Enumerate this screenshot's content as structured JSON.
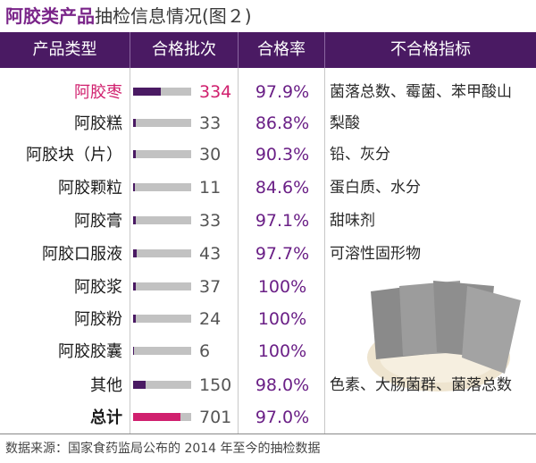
{
  "title": {
    "part1": "阿胶类产品",
    "part2": "抽检信息情况",
    "part3": "(图２)"
  },
  "header": {
    "product_type": "产品类型",
    "qualified_batches": "合格批次",
    "pass_rate": "合格率",
    "fail_indicators": "不合格指标"
  },
  "rows": [
    {
      "type": "阿胶枣",
      "count": "334",
      "rate": "97.9%",
      "fail": "菌落总数、霉菌、苯甲酸山",
      "bar_fraction": 0.48
    },
    {
      "type": "阿胶糕",
      "count": "33",
      "rate": "86.8%",
      "fail": "梨酸",
      "bar_fraction": 0.05
    },
    {
      "type": "阿胶块（片）",
      "count": "30",
      "rate": "90.3%",
      "fail": "铅、灰分",
      "bar_fraction": 0.05
    },
    {
      "type": "阿胶颗粒",
      "count": "11",
      "rate": "84.6%",
      "fail": "蛋白质、水分",
      "bar_fraction": 0.03
    },
    {
      "type": "阿胶膏",
      "count": "33",
      "rate": "97.1%",
      "fail": "甜味剂",
      "bar_fraction": 0.05
    },
    {
      "type": "阿胶口服液",
      "count": "43",
      "rate": "97.7%",
      "fail": "可溶性固形物",
      "bar_fraction": 0.06
    },
    {
      "type": "阿胶浆",
      "count": "37",
      "rate": "100%",
      "fail": "",
      "bar_fraction": 0.05
    },
    {
      "type": "阿胶粉",
      "count": "24",
      "rate": "100%",
      "fail": "",
      "bar_fraction": 0.04
    },
    {
      "type": "阿胶胶囊",
      "count": "6",
      "rate": "100%",
      "fail": "",
      "bar_fraction": 0.02
    },
    {
      "type": "其他",
      "count": "150",
      "rate": "98.0%",
      "fail": "色素、大肠菌群、菌落总数",
      "bar_fraction": 0.21
    },
    {
      "type": "总计",
      "count": "701",
      "rate": "97.0%",
      "fail": "",
      "bar_fraction": 0.82
    }
  ],
  "source": "数据来源：国家食药监局公布的 2014 年至今的抽检数据",
  "colors": {
    "header_bg": "#4a1a63",
    "bar_fill": "#4a1a63",
    "bar_track": "#c2c2c2",
    "highlight": "#d0206e",
    "rate_text": "#6a1f86"
  }
}
